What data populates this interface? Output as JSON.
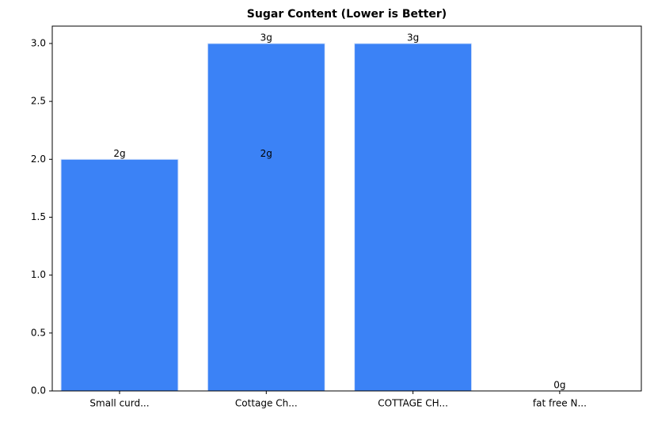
{
  "chart_data": {
    "type": "bar",
    "title": "Sugar Content (Lower is Better)",
    "categories": [
      "Small curd...",
      "Cottage Ch...",
      "COTTAGE CH...",
      "fat free N..."
    ],
    "values": [
      2,
      3,
      3,
      0
    ],
    "value_labels": [
      "2g",
      "3g",
      "3g",
      "0g"
    ],
    "color": "#3b82f6",
    "ylim": [
      0,
      3.15
    ],
    "yticks": [
      {
        "value": 0,
        "label": "0.0"
      },
      0.5,
      {
        "value": 1,
        "label": "1.0"
      },
      1.5,
      {
        "value": 2,
        "label": "2.0"
      },
      2.5,
      {
        "value": 3,
        "label": "3.0"
      }
    ],
    "grid": false,
    "annotations": [
      {
        "text": "2g",
        "category": 1,
        "y": 2
      }
    ]
  }
}
